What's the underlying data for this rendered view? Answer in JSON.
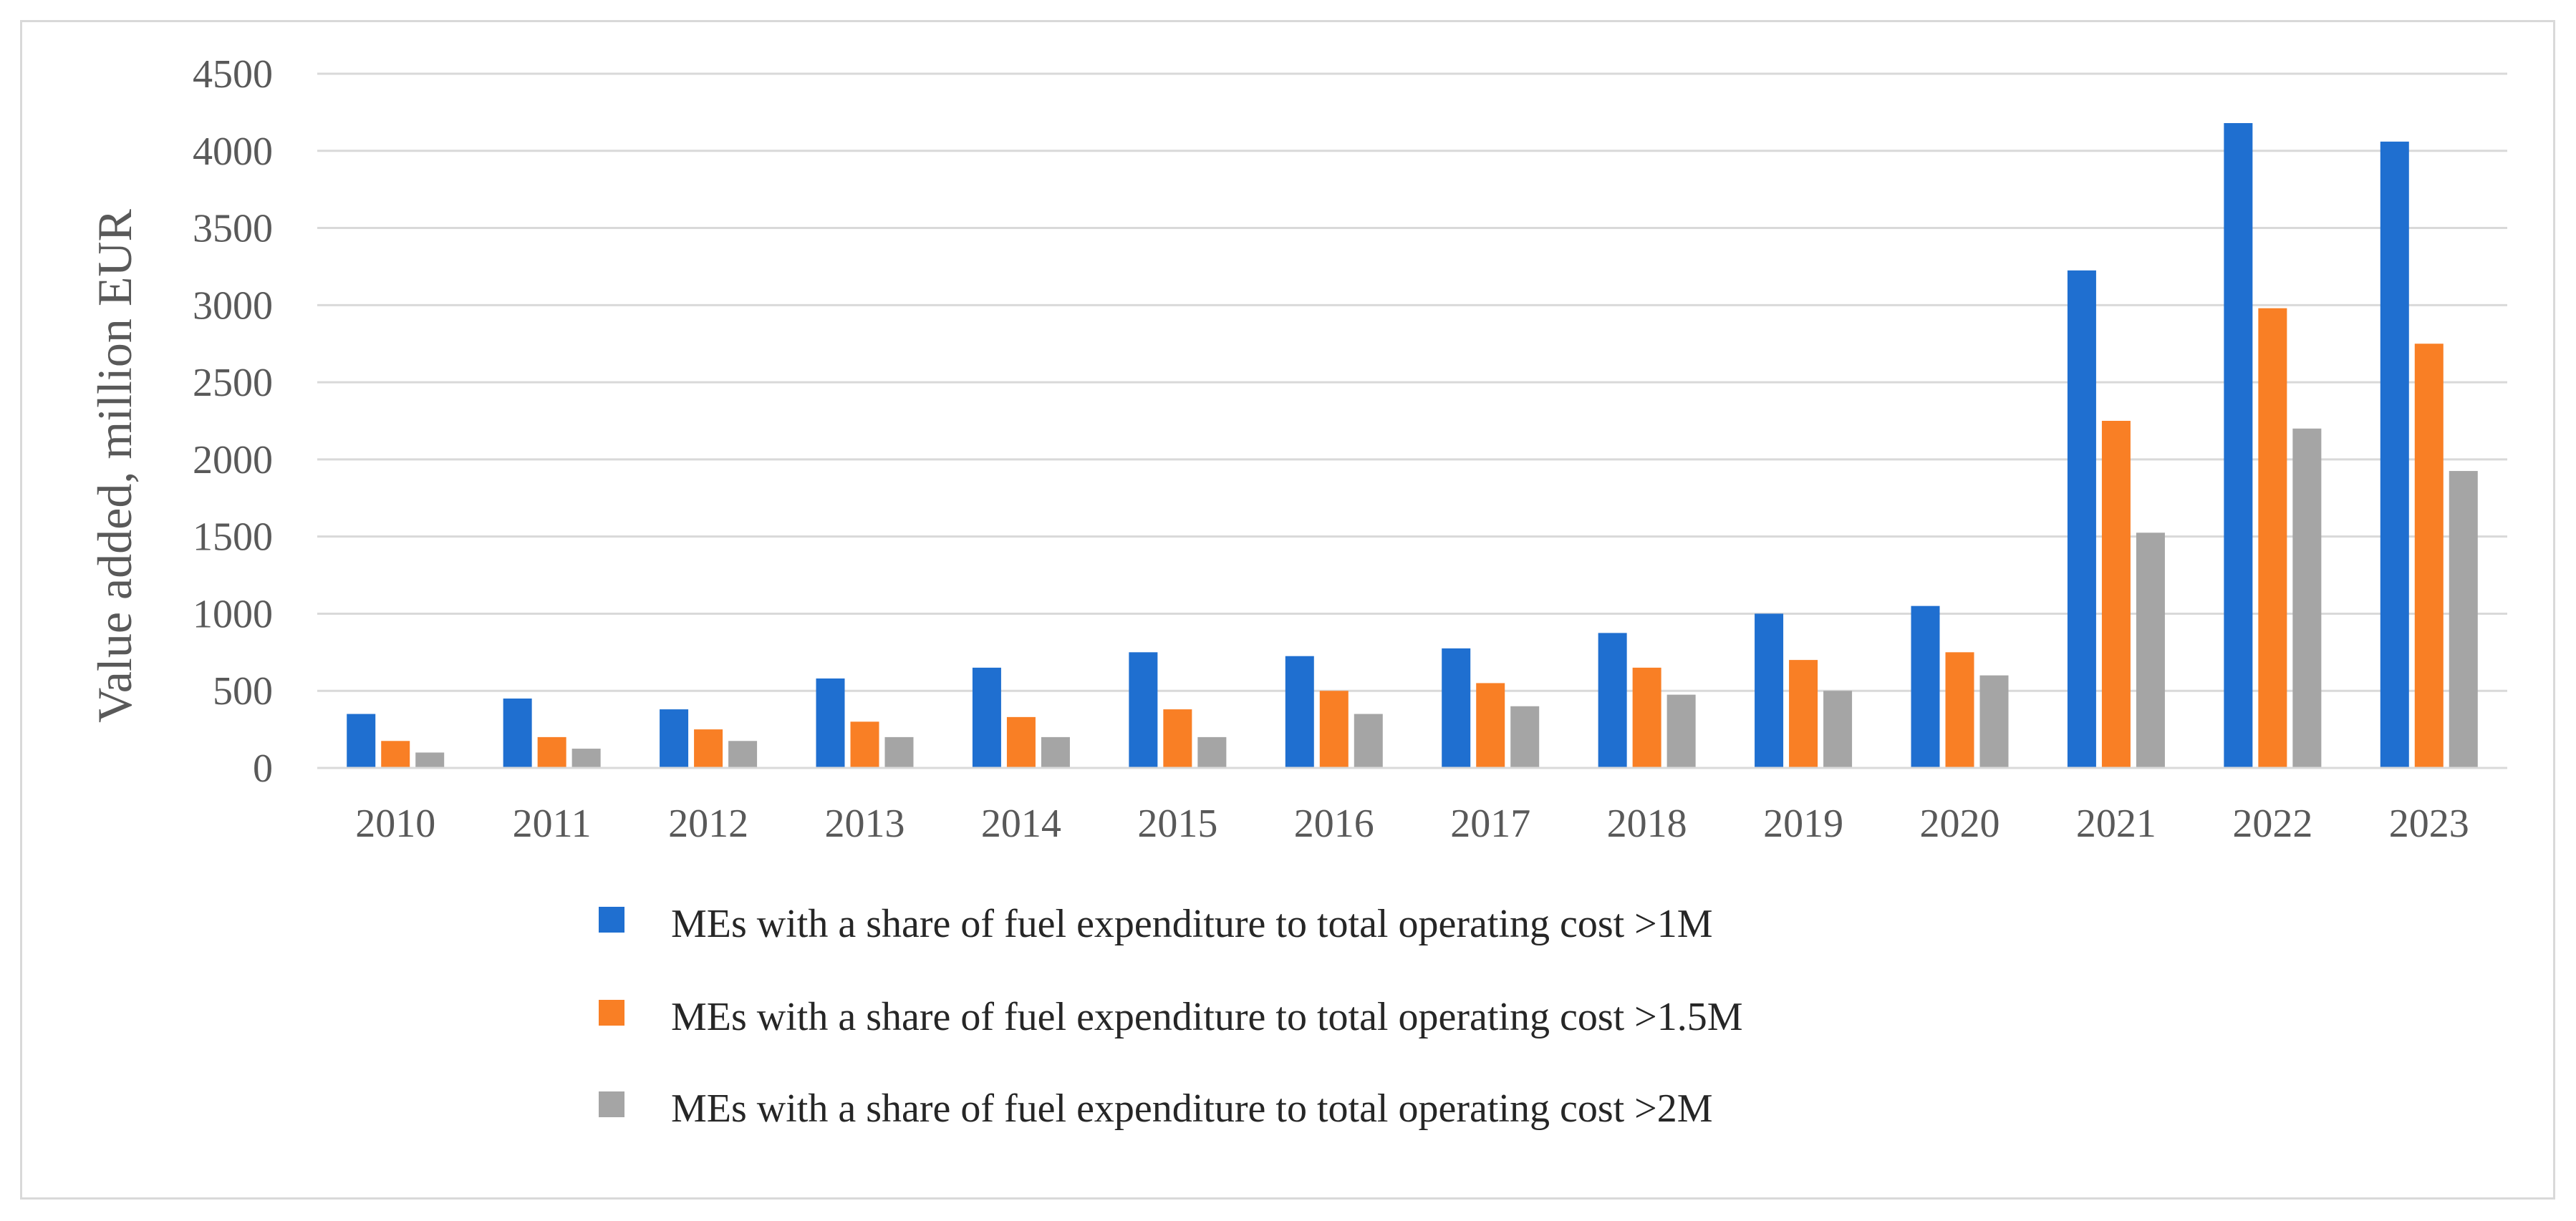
{
  "chart_data": {
    "type": "bar",
    "title": "",
    "xlabel": "",
    "ylabel": "Value added, million EUR",
    "ylim": [
      0,
      4500
    ],
    "yticks": [
      0,
      500,
      1000,
      1500,
      2000,
      2500,
      3000,
      3500,
      4000,
      4500
    ],
    "grid": true,
    "legend_position": "bottom",
    "categories": [
      "2010",
      "2011",
      "2012",
      "2013",
      "2014",
      "2015",
      "2016",
      "2017",
      "2018",
      "2019",
      "2020",
      "2021",
      "2022",
      "2023"
    ],
    "series": [
      {
        "name": "MEs with a share of fuel expenditure to total operating cost >1M",
        "color": "#1F6FD0",
        "values": [
          350,
          450,
          380,
          580,
          650,
          750,
          725,
          775,
          875,
          1000,
          1050,
          3225,
          4180,
          4060
        ]
      },
      {
        "name": "MEs with a share of fuel expenditure to total operating cost >1.5M",
        "color": "#F97F25",
        "values": [
          175,
          200,
          250,
          300,
          330,
          380,
          500,
          550,
          650,
          700,
          750,
          2250,
          2980,
          2750
        ]
      },
      {
        "name": "MEs with a share of fuel expenditure to total operating cost >2M",
        "color": "#A5A5A5",
        "values": [
          100,
          125,
          175,
          200,
          200,
          200,
          350,
          400,
          475,
          500,
          600,
          1525,
          2200,
          1925
        ]
      }
    ]
  }
}
